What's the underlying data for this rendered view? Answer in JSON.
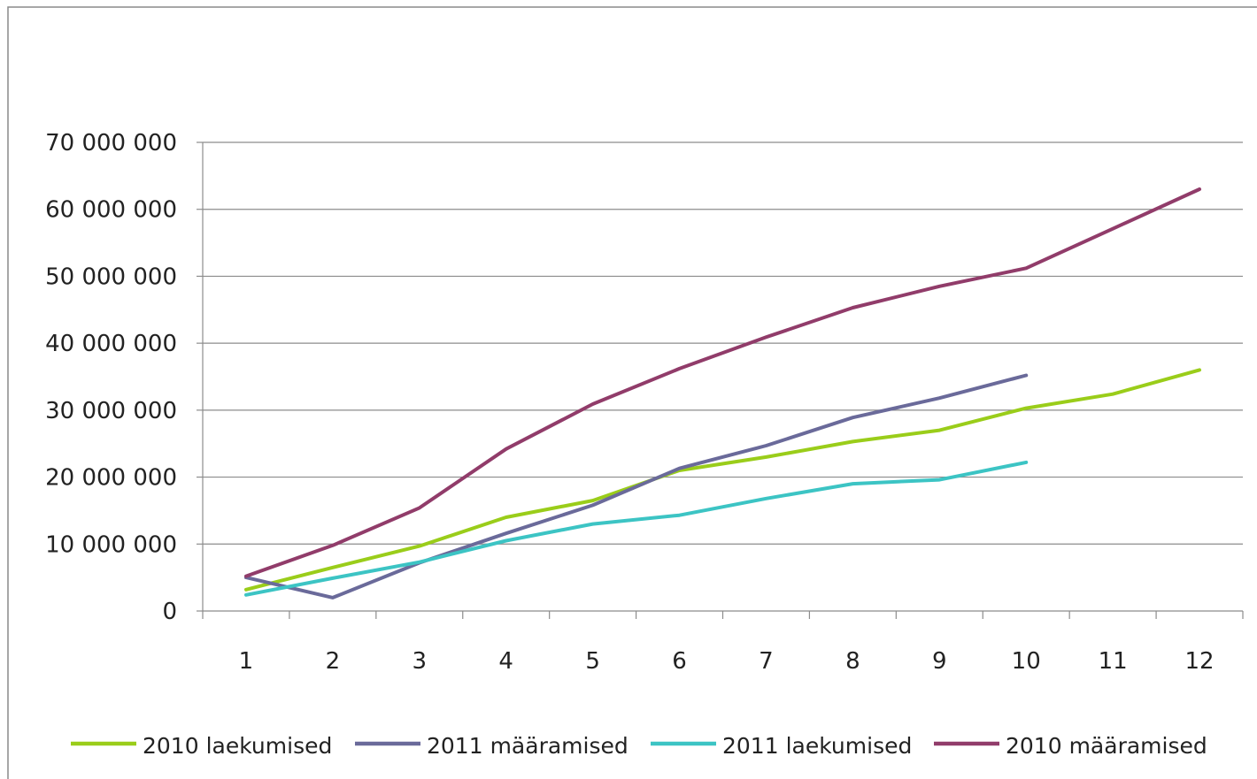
{
  "chart_data": {
    "type": "line",
    "title": "",
    "xlabel": "",
    "ylabel": "",
    "categories": [
      "1",
      "2",
      "3",
      "4",
      "5",
      "6",
      "7",
      "8",
      "9",
      "10",
      "11",
      "12"
    ],
    "y_ticks": [
      "0",
      "10 000 000",
      "20 000 000",
      "30 000 000",
      "40 000 000",
      "50 000 000",
      "60 000 000",
      "70 000 000"
    ],
    "ylim": [
      0,
      70000000
    ],
    "grid": "horizontal",
    "legend_position": "bottom",
    "series": [
      {
        "name": "2010 laekumised",
        "color": "#9ACD1A",
        "values": [
          3200000,
          6500000,
          9700000,
          14000000,
          16500000,
          21000000,
          23000000,
          25300000,
          27000000,
          30300000,
          32400000,
          36000000
        ]
      },
      {
        "name": "2011 määramised",
        "color": "#6A6A9A",
        "values": [
          5000000,
          2000000,
          7200000,
          11600000,
          15800000,
          21300000,
          24700000,
          28900000,
          31800000,
          35200000,
          null,
          null
        ]
      },
      {
        "name": "2011 laekumised",
        "color": "#3CC4C4",
        "values": [
          2400000,
          4900000,
          7300000,
          10500000,
          13000000,
          14300000,
          16800000,
          19000000,
          19600000,
          22200000,
          null,
          null
        ]
      },
      {
        "name": "2010 määramised",
        "color": "#913C6A",
        "values": [
          5200000,
          9800000,
          15400000,
          24200000,
          30900000,
          36200000,
          40900000,
          45300000,
          48500000,
          51200000,
          57100000,
          63000000
        ]
      }
    ]
  }
}
